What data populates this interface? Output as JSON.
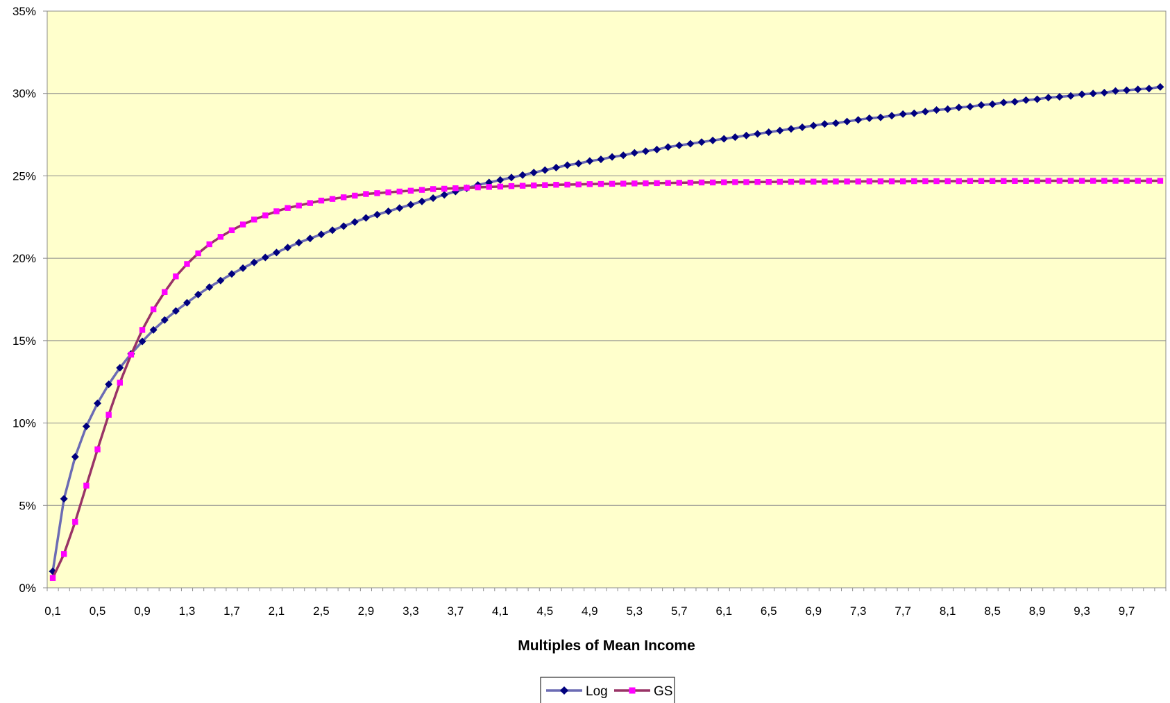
{
  "chart_data": {
    "type": "line",
    "title": "",
    "xlabel": "Multiples of Mean Income",
    "ylabel": "",
    "x": [
      0.1,
      0.2,
      0.3,
      0.4,
      0.5,
      0.6,
      0.7,
      0.8,
      0.9,
      1.0,
      1.1,
      1.2,
      1.3,
      1.4,
      1.5,
      1.6,
      1.7,
      1.8,
      1.9,
      2.0,
      2.1,
      2.2,
      2.3,
      2.4,
      2.5,
      2.6,
      2.7,
      2.8,
      2.9,
      3.0,
      3.1,
      3.2,
      3.3,
      3.4,
      3.5,
      3.6,
      3.7,
      3.8,
      3.9,
      4.0,
      4.1,
      4.2,
      4.3,
      4.4,
      4.5,
      4.6,
      4.7,
      4.8,
      4.9,
      5.0,
      5.1,
      5.2,
      5.3,
      5.4,
      5.5,
      5.6,
      5.7,
      5.8,
      5.9,
      6.0,
      6.1,
      6.2,
      6.3,
      6.4,
      6.5,
      6.6,
      6.7,
      6.8,
      6.9,
      7.0,
      7.1,
      7.2,
      7.3,
      7.4,
      7.5,
      7.6,
      7.7,
      7.8,
      7.9,
      8.0,
      8.1,
      8.2,
      8.3,
      8.4,
      8.5,
      8.6,
      8.7,
      8.8,
      8.9,
      9.0,
      9.1,
      9.2,
      9.3,
      9.4,
      9.5,
      9.6,
      9.7,
      9.8,
      9.9,
      10.0
    ],
    "x_tick_labels": [
      "0,1",
      "0,5",
      "0,9",
      "1,3",
      "1,7",
      "2,1",
      "2,5",
      "2,9",
      "3,3",
      "3,7",
      "4,1",
      "4,5",
      "4,9",
      "5,3",
      "5,7",
      "6,1",
      "6,5",
      "6,9",
      "7,3",
      "7,7",
      "8,1",
      "8,5",
      "8,9",
      "9,3",
      "9,7"
    ],
    "y_tick_labels": [
      "0%",
      "5%",
      "10%",
      "15%",
      "20%",
      "25%",
      "30%",
      "35%"
    ],
    "ylim": [
      0,
      35
    ],
    "grid": true,
    "legend_position": "bottom",
    "plot_background": "#FFFFCC",
    "series": [
      {
        "name": "Log",
        "line_color": "#6B6BB4",
        "marker_color": "#00007E",
        "marker": "diamond",
        "values": [
          1.0,
          5.4,
          7.95,
          9.8,
          11.2,
          12.35,
          13.35,
          14.2,
          14.95,
          15.65,
          16.25,
          16.8,
          17.3,
          17.8,
          18.25,
          18.65,
          19.05,
          19.4,
          19.75,
          20.05,
          20.35,
          20.65,
          20.95,
          21.2,
          21.45,
          21.7,
          21.95,
          22.2,
          22.45,
          22.65,
          22.85,
          23.05,
          23.25,
          23.45,
          23.65,
          23.85,
          24.05,
          24.25,
          24.45,
          24.6,
          24.75,
          24.9,
          25.05,
          25.2,
          25.35,
          25.5,
          25.65,
          25.75,
          25.9,
          26.0,
          26.15,
          26.25,
          26.4,
          26.5,
          26.6,
          26.75,
          26.85,
          26.95,
          27.05,
          27.15,
          27.25,
          27.35,
          27.45,
          27.55,
          27.65,
          27.75,
          27.85,
          27.95,
          28.05,
          28.15,
          28.2,
          28.3,
          28.4,
          28.5,
          28.55,
          28.65,
          28.75,
          28.8,
          28.9,
          29.0,
          29.05,
          29.15,
          29.2,
          29.3,
          29.35,
          29.45,
          29.5,
          29.6,
          29.65,
          29.75,
          29.8,
          29.85,
          29.95,
          30.0,
          30.05,
          30.15,
          30.2,
          30.25,
          30.3,
          30.4
        ]
      },
      {
        "name": "GS",
        "line_color": "#993366",
        "marker_color": "#FF00FF",
        "marker": "square",
        "values": [
          0.6,
          2.05,
          4.0,
          6.2,
          8.4,
          10.5,
          12.45,
          14.15,
          15.65,
          16.9,
          17.95,
          18.9,
          19.65,
          20.3,
          20.85,
          21.3,
          21.7,
          22.05,
          22.35,
          22.6,
          22.85,
          23.05,
          23.2,
          23.35,
          23.5,
          23.6,
          23.7,
          23.8,
          23.9,
          23.95,
          24.0,
          24.05,
          24.1,
          24.15,
          24.2,
          24.22,
          24.25,
          24.28,
          24.3,
          24.33,
          24.35,
          24.38,
          24.4,
          24.42,
          24.44,
          24.46,
          24.47,
          24.48,
          24.5,
          24.51,
          24.52,
          24.53,
          24.54,
          24.55,
          24.56,
          24.57,
          24.58,
          24.59,
          24.6,
          24.6,
          24.61,
          24.62,
          24.62,
          24.63,
          24.63,
          24.64,
          24.64,
          24.65,
          24.65,
          24.65,
          24.66,
          24.66,
          24.66,
          24.67,
          24.67,
          24.67,
          24.67,
          24.68,
          24.68,
          24.68,
          24.68,
          24.68,
          24.69,
          24.69,
          24.69,
          24.69,
          24.69,
          24.69,
          24.7,
          24.7,
          24.7,
          24.7,
          24.7,
          24.7,
          24.7,
          24.7,
          24.7,
          24.7,
          24.7,
          24.7
        ]
      }
    ]
  }
}
